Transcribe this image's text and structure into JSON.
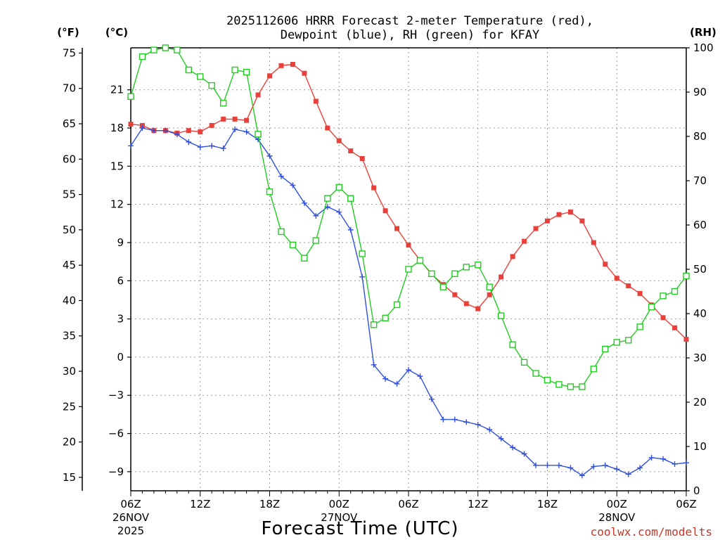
{
  "chart_data": {
    "type": "line",
    "title_line1": "2025112606 HRRR Forecast 2-meter Temperature (red),",
    "title_line2": "Dewpoint (blue), RH (green) for KFAY",
    "xlabel": "Forecast Time (UTC)",
    "credit": "coolwx.com/modelts",
    "units": {
      "fahrenheit": "(°F)",
      "celsius": "(°C)",
      "rh": "(RH)"
    },
    "x_ticks": [
      {
        "hour": 0,
        "label": "06Z"
      },
      {
        "hour": 6,
        "label": "12Z"
      },
      {
        "hour": 12,
        "label": "18Z"
      },
      {
        "hour": 18,
        "label": "00Z"
      },
      {
        "hour": 24,
        "label": "06Z"
      },
      {
        "hour": 30,
        "label": "12Z"
      },
      {
        "hour": 36,
        "label": "18Z"
      },
      {
        "hour": 42,
        "label": "00Z"
      },
      {
        "hour": 48,
        "label": "06Z"
      }
    ],
    "date_labels": [
      {
        "hour": 0,
        "line1": "26NOV",
        "line2": "2025"
      },
      {
        "hour": 18,
        "line1": "27NOV",
        "line2": ""
      },
      {
        "hour": 42,
        "line1": "28NOV",
        "line2": ""
      }
    ],
    "x_range": [
      0,
      48
    ],
    "c_range": [
      -10.5,
      24.3
    ],
    "rh_range": [
      0,
      100
    ],
    "f_ticks": [
      15,
      20,
      25,
      30,
      35,
      40,
      45,
      50,
      55,
      60,
      65,
      70,
      75
    ],
    "c_ticks": [
      -9,
      -6,
      -3,
      0,
      3,
      6,
      9,
      12,
      15,
      18,
      21
    ],
    "rh_ticks": [
      0,
      10,
      20,
      30,
      40,
      50,
      60,
      70,
      80,
      90,
      100
    ],
    "series": [
      {
        "name": "2-meter Temperature",
        "units": "C",
        "color": "#e8403a",
        "marker": "filled-square",
        "values": [
          18.3,
          18.2,
          17.8,
          17.8,
          17.6,
          17.8,
          17.7,
          18.2,
          18.7,
          18.7,
          18.6,
          20.6,
          22.1,
          22.9,
          23.0,
          22.3,
          20.1,
          18.0,
          17.0,
          16.2,
          15.6,
          13.3,
          11.5,
          10.1,
          8.8,
          7.6,
          6.5,
          5.7,
          4.9,
          4.2,
          3.8,
          4.9,
          6.3,
          7.9,
          9.1,
          10.1,
          10.7,
          11.2,
          11.4,
          10.7,
          9.0,
          7.3,
          6.2,
          5.6,
          5.0,
          4.1,
          3.1,
          2.3,
          1.4
        ]
      },
      {
        "name": "Dewpoint",
        "units": "C",
        "color": "#3050e0",
        "marker": "plus",
        "values": [
          16.6,
          18.0,
          17.8,
          17.8,
          17.5,
          16.9,
          16.5,
          16.6,
          16.4,
          17.9,
          17.7,
          17.1,
          15.8,
          14.2,
          13.5,
          12.1,
          11.1,
          11.8,
          11.4,
          10.0,
          6.3,
          -0.6,
          -1.7,
          -2.1,
          -1.0,
          -1.5,
          -3.3,
          -4.9,
          -4.9,
          -5.1,
          -5.3,
          -5.7,
          -6.4,
          -7.1,
          -7.6,
          -8.5,
          -8.5,
          -8.5,
          -8.7,
          -9.3,
          -8.6,
          -8.5,
          -8.8,
          -9.2,
          -8.7,
          -7.9,
          -8.0,
          -8.4,
          -8.3
        ]
      },
      {
        "name": "RH",
        "units": "%",
        "color": "#22cc22",
        "marker": "open-square",
        "values": [
          89,
          98,
          99.5,
          100,
          99.5,
          95,
          93.5,
          91.5,
          87.5,
          95,
          94.5,
          80.5,
          67.5,
          58.5,
          55.5,
          52.5,
          56.5,
          66,
          68.5,
          66,
          53.5,
          37.5,
          39,
          42,
          50,
          52,
          49,
          46,
          49,
          50.5,
          51,
          46,
          39.5,
          33,
          29,
          26.5,
          25,
          24,
          23.5,
          23.5,
          27.5,
          32,
          33.5,
          34,
          37,
          41.5,
          44,
          45,
          48.5
        ]
      }
    ]
  }
}
